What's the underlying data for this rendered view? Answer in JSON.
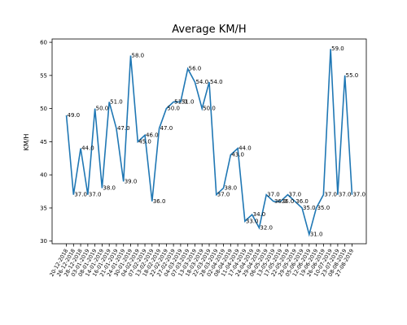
{
  "chart_data": {
    "type": "line",
    "title": "Average KM/H",
    "y_label": "KM/H",
    "categories": [
      "20-12-2018",
      "26-12-2018",
      "28-12-2018",
      "03-01-2019",
      "08-01-2019",
      "14-01-2019",
      "16-01-2019",
      "21-01-2019",
      "24-01-2019",
      "30-01-2019",
      "04-02-2019",
      "07-02-2019",
      "13-02-2019",
      "18-02-2019",
      "22-02-2019",
      "27-02-2019",
      "04-03-2019",
      "07-03-2019",
      "13-03-2019",
      "18-03-2019",
      "22-03-2019",
      "28-03-2019",
      "02-04-2019",
      "08-04-2019",
      "11-04-2019",
      "17-04-2019",
      "24-04-2019",
      "29-04-2019",
      "06-05-2019",
      "13-05-2019",
      "17-05-2019",
      "22-05-2019",
      "29-05-2019",
      "05-06-2019",
      "12-06-2019",
      "19-06-2019",
      "26-06-2019",
      "10-07-2019",
      "23-07-2019",
      "08-08-2019",
      "27-08-2019"
    ],
    "series": [
      {
        "name": "Average KM/H",
        "color": "#1f77b4",
        "values": [
          49,
          37,
          44,
          37,
          50,
          38,
          51,
          47,
          39,
          58,
          45,
          46,
          36,
          47,
          50,
          51,
          51,
          56,
          54,
          50,
          54,
          37,
          38,
          43,
          44,
          33,
          34,
          32,
          37,
          36,
          36,
          37,
          36,
          35,
          31,
          35,
          37,
          59,
          37,
          55,
          37
        ],
        "value_labels": [
          "49.0",
          "37.0",
          "44.0",
          "37.0",
          "50.0",
          "38.0",
          "51.0",
          "47.0",
          "39.0",
          "58.0",
          "45.0",
          "46.0",
          "36.0",
          "47.0",
          "50.0",
          "51.0",
          "51.0",
          "56.0",
          "54.0",
          "50.0",
          "54.0",
          "37.0",
          "38.0",
          "43.0",
          "44.0",
          "33.0",
          "34.0",
          "32.0",
          "37.0",
          "36.0",
          "36.0",
          "37.0",
          "36.0",
          "35.0",
          "31.0",
          "35.0",
          "37.0",
          "59.0",
          "37.0",
          "55.0",
          "37.0"
        ]
      }
    ],
    "ylim": [
      29.6,
      60.5
    ],
    "yticks": [
      30,
      35,
      40,
      45,
      50,
      55,
      60
    ]
  }
}
